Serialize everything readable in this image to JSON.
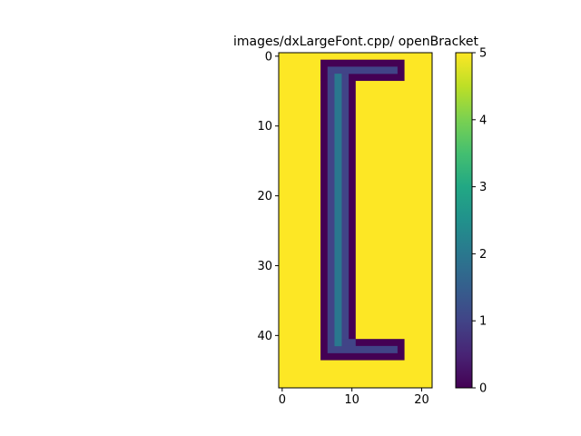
{
  "chart_data": {
    "type": "heatmap",
    "title": "images/dxLargeFont.cpp/ openBracket",
    "xlabel": "",
    "ylabel": "",
    "colormap": "viridis",
    "vmin": 0,
    "vmax": 5,
    "grid": false,
    "legend": "colorbar-right",
    "cols": 22,
    "rows": 48,
    "xticks": [
      0,
      10,
      20
    ],
    "yticks": [
      0,
      10,
      20,
      30,
      40
    ],
    "colorbar_ticks": [
      0,
      1,
      2,
      3,
      4,
      5
    ],
    "background_value": 5,
    "regions": [
      {
        "value": 0,
        "cols": [
          6,
          17
        ],
        "rows": [
          1,
          3
        ]
      },
      {
        "value": 0,
        "cols": [
          6,
          10
        ],
        "rows": [
          4,
          40
        ]
      },
      {
        "value": 0,
        "cols": [
          6,
          17
        ],
        "rows": [
          41,
          43
        ]
      },
      {
        "value": 1,
        "cols": [
          7,
          16
        ],
        "rows": [
          2,
          2
        ]
      },
      {
        "value": 1,
        "cols": [
          7,
          7
        ],
        "rows": [
          3,
          41
        ]
      },
      {
        "value": 1,
        "cols": [
          9,
          9
        ],
        "rows": [
          3,
          40
        ]
      },
      {
        "value": 1,
        "cols": [
          9,
          10
        ],
        "rows": [
          41,
          41
        ]
      },
      {
        "value": 1,
        "cols": [
          7,
          16
        ],
        "rows": [
          42,
          42
        ]
      },
      {
        "value": 2,
        "cols": [
          8,
          8
        ],
        "rows": [
          3,
          41
        ]
      }
    ]
  }
}
